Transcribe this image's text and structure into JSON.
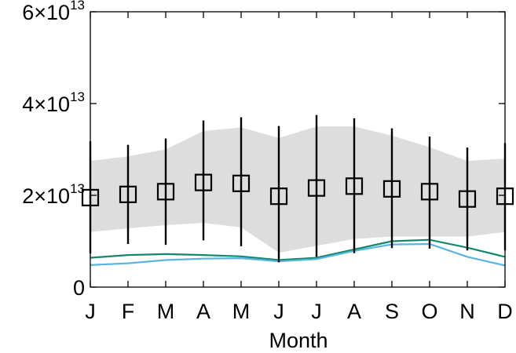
{
  "chart_data": {
    "type": "line",
    "xlabel": "Month",
    "ylabel": "",
    "ylim": [
      0,
      60000000000000
    ],
    "grid": false,
    "categories": [
      "J",
      "F",
      "M",
      "A",
      "M",
      "J",
      "J",
      "A",
      "S",
      "O",
      "N",
      "D"
    ],
    "y_ticks": [
      {
        "value": 0,
        "mantissa": "0",
        "exponent": ""
      },
      {
        "value": 20000000000000,
        "mantissa": "2×10",
        "exponent": "13"
      },
      {
        "value": 40000000000000,
        "mantissa": "4×10",
        "exponent": "13"
      },
      {
        "value": 60000000000000,
        "mantissa": "6×10",
        "exponent": "13"
      }
    ],
    "band": {
      "color": "#dddddd",
      "lower": [
        12000000000000,
        12800000000000,
        13500000000000,
        14000000000000,
        13000000000000,
        7500000000000,
        9000000000000,
        10500000000000,
        11000000000000,
        11000000000000,
        11000000000000,
        12000000000000
      ],
      "upper": [
        27500000000000,
        28500000000000,
        30000000000000,
        34000000000000,
        34800000000000,
        32500000000000,
        35000000000000,
        35000000000000,
        33000000000000,
        30500000000000,
        27500000000000,
        28000000000000
      ]
    },
    "markers": {
      "shape": "square",
      "color": "#000000",
      "values": [
        19500000000000,
        20200000000000,
        20800000000000,
        22800000000000,
        22600000000000,
        19800000000000,
        21600000000000,
        22000000000000,
        21400000000000,
        20800000000000,
        19200000000000,
        19800000000000
      ],
      "err_low": [
        7300000000000,
        9400000000000,
        9200000000000,
        10200000000000,
        8900000000000,
        5400000000000,
        6600000000000,
        7400000000000,
        8500000000000,
        8400000000000,
        8000000000000,
        8000000000000
      ],
      "err_high": [
        31800000000000,
        31000000000000,
        32400000000000,
        36300000000000,
        37000000000000,
        35100000000000,
        37500000000000,
        36800000000000,
        34600000000000,
        32800000000000,
        30400000000000,
        31400000000000
      ]
    },
    "series": [
      {
        "color": "#14886a",
        "values": [
          6400000000000,
          7000000000000,
          7200000000000,
          7000000000000,
          6700000000000,
          5900000000000,
          6400000000000,
          8200000000000,
          10000000000000,
          10300000000000,
          8600000000000,
          6600000000000
        ]
      },
      {
        "color": "#5ab4e0",
        "values": [
          4800000000000,
          5200000000000,
          5900000000000,
          6200000000000,
          6300000000000,
          5600000000000,
          6100000000000,
          7900000000000,
          9300000000000,
          9400000000000,
          6600000000000,
          4700000000000
        ]
      }
    ]
  }
}
